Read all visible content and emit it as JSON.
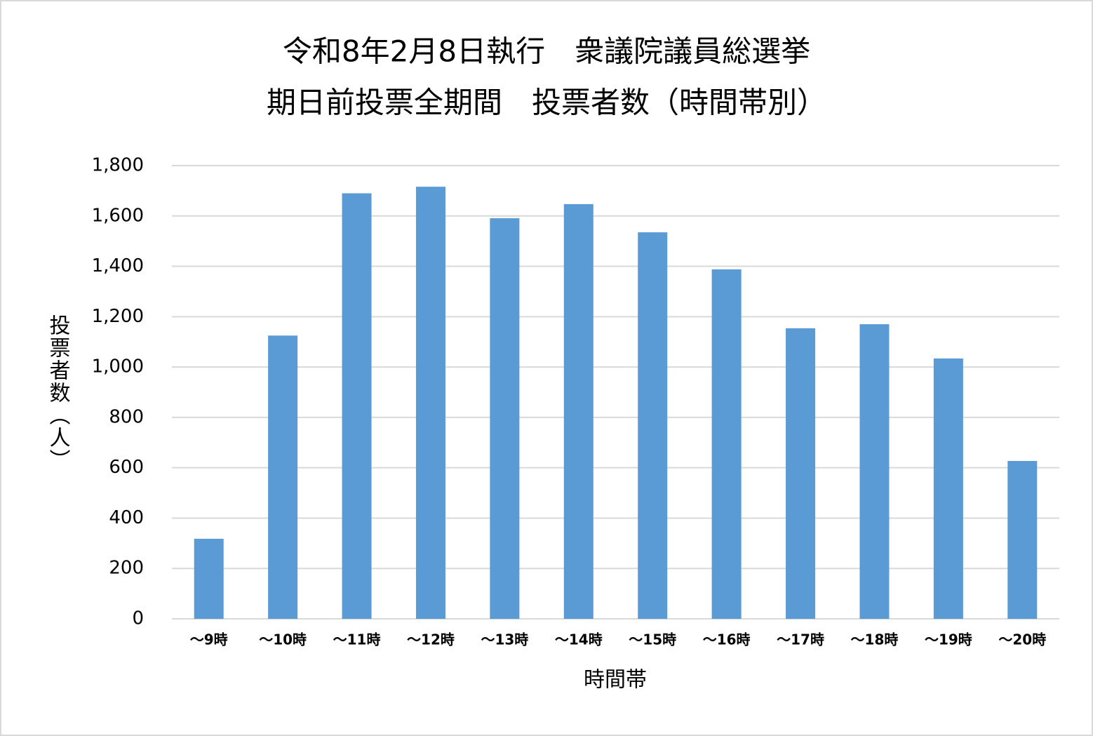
{
  "chart_data": {
    "type": "bar",
    "title": [
      "令和8年2月8日執行　衆議院議員総選挙",
      "期日前投票全期間　投票者数（時間帯別）"
    ],
    "x_label": "時間帯",
    "y_label": "投票者数（人）",
    "categories": [
      "～9時",
      "～10時",
      "～11時",
      "～12時",
      "～13時",
      "～14時",
      "～15時",
      "～16時",
      "～17時",
      "～18時",
      "～19時",
      "～20時"
    ],
    "values": [
      318,
      1125,
      1690,
      1716,
      1591,
      1647,
      1535,
      1388,
      1154,
      1170,
      1034,
      627
    ],
    "color": "#5b9bd5",
    "ylim": [
      0,
      1800
    ],
    "yticks": [
      0,
      200,
      400,
      600,
      800,
      {
        "value": 1000,
        "label": "1,000"
      },
      {
        "value": 1200,
        "label": "1,200"
      },
      {
        "value": 1400,
        "label": "1,400"
      },
      {
        "value": 1600,
        "label": "1,600"
      },
      {
        "value": 1800,
        "label": "1,800"
      }
    ],
    "grid": true
  }
}
